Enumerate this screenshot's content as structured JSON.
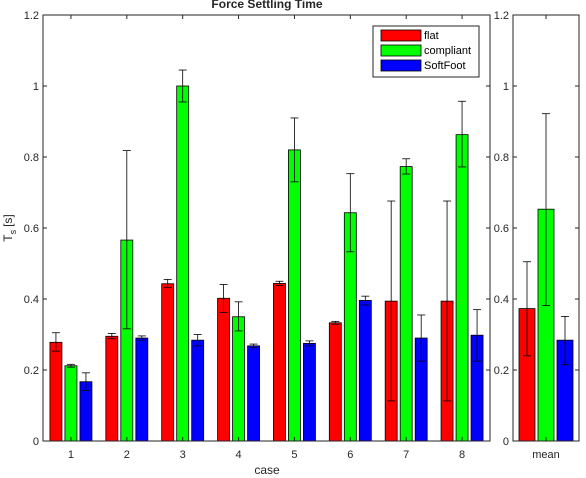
{
  "chart_data": [
    {
      "type": "bar",
      "title": "Force Settling Time",
      "xlabel": "case",
      "ylabel": "T_s [s]",
      "ylabel_main": "T",
      "ylabel_sub": "s",
      "ylabel_unit": "[s]",
      "ylim": [
        0,
        1.2
      ],
      "yticks": [
        "0",
        "0.2",
        "0.4",
        "0.6",
        "0.8",
        "1",
        "1.2"
      ],
      "categories": [
        "1",
        "2",
        "3",
        "4",
        "5",
        "6",
        "7",
        "8"
      ],
      "grid": false,
      "legend_position": "top-right",
      "series": [
        {
          "name": "flat",
          "color": "#ff0000",
          "values": [
            0.278,
            0.295,
            0.443,
            0.402,
            0.444,
            0.333,
            0.394,
            0.394
          ],
          "err_low": [
            0.253,
            0.288,
            0.432,
            0.362,
            0.438,
            0.329,
            0.113,
            0.113
          ],
          "err_high": [
            0.305,
            0.303,
            0.455,
            0.441,
            0.45,
            0.337,
            0.676,
            0.676
          ]
        },
        {
          "name": "compliant",
          "color": "#00ff00",
          "values": [
            0.212,
            0.566,
            1.0,
            0.35,
            0.82,
            0.643,
            0.773,
            0.863
          ],
          "err_low": [
            0.208,
            0.316,
            0.955,
            0.31,
            0.73,
            0.533,
            0.752,
            0.772
          ],
          "err_high": [
            0.216,
            0.818,
            1.045,
            0.392,
            0.91,
            0.753,
            0.795,
            0.957
          ]
        },
        {
          "name": "SoftFoot",
          "color": "#0000ff",
          "values": [
            0.167,
            0.29,
            0.284,
            0.268,
            0.275,
            0.396,
            0.29,
            0.298
          ],
          "err_low": [
            0.142,
            0.284,
            0.268,
            0.263,
            0.268,
            0.383,
            0.225,
            0.225
          ],
          "err_high": [
            0.192,
            0.296,
            0.3,
            0.273,
            0.282,
            0.408,
            0.355,
            0.37
          ]
        }
      ]
    },
    {
      "type": "bar",
      "title": "",
      "xlabel": "",
      "ylabel": "",
      "ylim": [
        0,
        1.2
      ],
      "yticks": [
        "0",
        "0.2",
        "0.4",
        "0.6",
        "0.8",
        "1",
        "1.2"
      ],
      "categories": [
        "mean"
      ],
      "grid": false,
      "series": [
        {
          "name": "flat",
          "color": "#ff0000",
          "values": [
            0.373
          ],
          "err_low": [
            0.24
          ],
          "err_high": [
            0.505
          ]
        },
        {
          "name": "compliant",
          "color": "#00ff00",
          "values": [
            0.653
          ],
          "err_low": [
            0.382
          ],
          "err_high": [
            0.922
          ]
        },
        {
          "name": "SoftFoot",
          "color": "#0000ff",
          "values": [
            0.284
          ],
          "err_low": [
            0.215
          ],
          "err_high": [
            0.351
          ]
        }
      ]
    }
  ]
}
